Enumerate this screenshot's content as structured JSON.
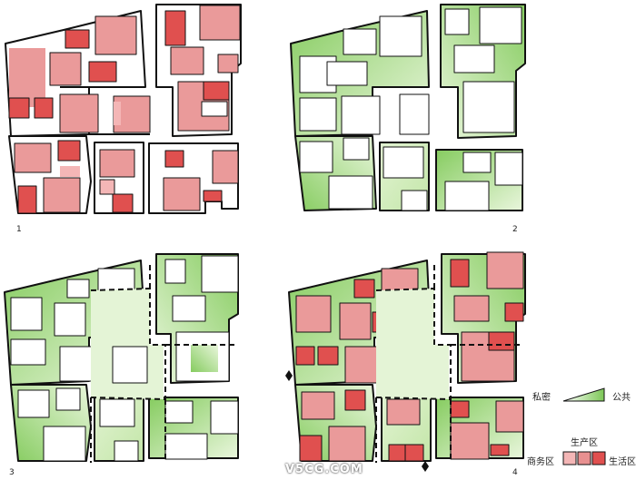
{
  "panels": [
    {
      "id": "1",
      "label": "1"
    },
    {
      "id": "2",
      "label": "2"
    },
    {
      "id": "3",
      "label": "3"
    },
    {
      "id": "4",
      "label": "4"
    }
  ],
  "legend": {
    "private": "私密",
    "public": "公共",
    "production": "生产区",
    "business": "商务区",
    "living": "生活区"
  },
  "colors": {
    "red_light": "#f4b6b6",
    "red_mid": "#e89090",
    "red_dark": "#e0504f",
    "green_dark": "#8ed06a",
    "green_light": "#e9f6dc",
    "outline": "#111111"
  },
  "watermark": "V5CG.COM"
}
